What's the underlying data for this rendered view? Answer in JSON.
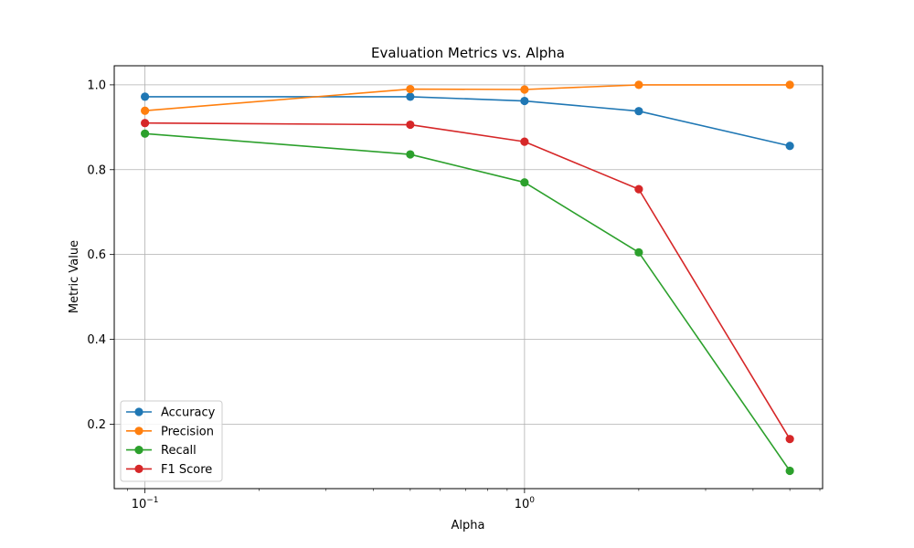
{
  "chart_data": {
    "type": "line",
    "title": "Evaluation Metrics vs. Alpha",
    "xlabel": "Alpha",
    "ylabel": "Metric Value",
    "xscale": "log",
    "xlim": [
      0.083,
      6.1
    ],
    "ylim": [
      0.048,
      1.045
    ],
    "grid": true,
    "legend_placement": "lower-left",
    "x": [
      0.1,
      0.5,
      1,
      2,
      5
    ],
    "series": [
      {
        "name": "Accuracy",
        "color": "#1f77b4",
        "marker": "circle",
        "values": [
          0.972,
          0.972,
          0.962,
          0.938,
          0.856
        ]
      },
      {
        "name": "Precision",
        "color": "#ff7f0e",
        "marker": "circle",
        "values": [
          0.939,
          0.99,
          0.989,
          1.0,
          1.0
        ]
      },
      {
        "name": "Recall",
        "color": "#2ca02c",
        "marker": "circle",
        "values": [
          0.885,
          0.836,
          0.77,
          0.605,
          0.09
        ]
      },
      {
        "name": "F1 Score",
        "color": "#d62728",
        "marker": "circle",
        "values": [
          0.91,
          0.906,
          0.866,
          0.754,
          0.165
        ]
      }
    ],
    "xticks": [
      {
        "value": 0.1,
        "base": "10",
        "exp": "−1"
      },
      {
        "value": 1,
        "base": "10",
        "exp": "0"
      }
    ],
    "yticks": [
      {
        "value": 0.2,
        "label": "0.2"
      },
      {
        "value": 0.4,
        "label": "0.4"
      },
      {
        "value": 0.6,
        "label": "0.6"
      },
      {
        "value": 0.8,
        "label": "0.8"
      },
      {
        "value": 1.0,
        "label": "1.0"
      }
    ]
  }
}
